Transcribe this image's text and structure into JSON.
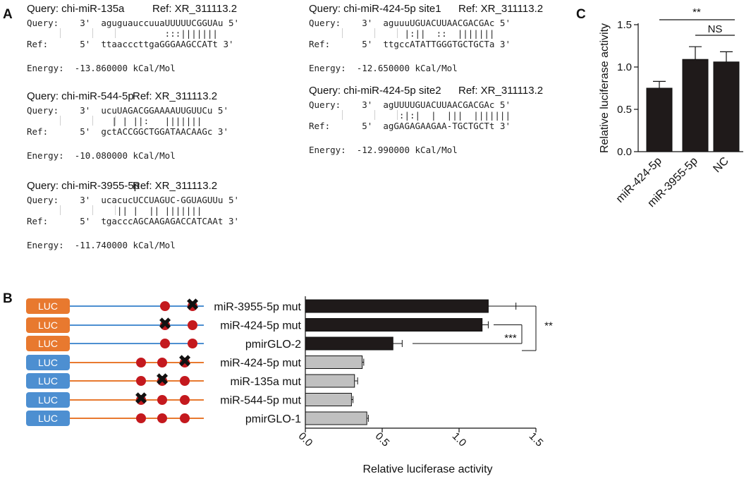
{
  "panels": {
    "a": "A",
    "b": "B",
    "c": "C"
  },
  "alignments": [
    {
      "query_title": "Query: chi-miR-135a",
      "ref_title": "Ref: XR_311113.2",
      "query_row": "Query:    3'  aguguauccuuaUUUUUCGGUAu 5'",
      "bars_row": "                          :::|||||||",
      "ref_row": "Ref:      5'  ttaacccttgaGGGAAGCCATt 3'",
      "energy_row": "Energy:  -13.860000 kCal/Mol"
    },
    {
      "query_title": "Query: chi-miR-544-5p",
      "ref_title": "Ref: XR_311113.2",
      "query_row": "Query:    3'  ucuUAGACGGAAAAUUGUUCu 5'",
      "bars_row": "                | | ||:   |||||||",
      "ref_row": "Ref:      5'  gctACCGGCTGGATAACAAGc 3'",
      "energy_row": "Energy:  -10.080000 kCal/Mol"
    },
    {
      "query_title": "Query: chi-miR-3955-5p",
      "ref_title": "Ref: XR_311113.2",
      "query_row": "Query:    3'  ucacucUCCUAGUC-GGUAGUUu 5'",
      "bars_row": "                 || |  || |||||||",
      "ref_row": "Ref:      5'  tgacccAGCAAGAGACCATCAAt 3'",
      "energy_row": "Energy:  -11.740000 kCal/Mol"
    },
    {
      "query_title": "Query: chi-miR-424-5p site1",
      "ref_title": "Ref: XR_311113.2",
      "query_row": "Query:    3'  aguuuUGUACUUAACGACGAc 5'",
      "bars_row": "                  |:||  ::  |||||||",
      "ref_row": "Ref:      5'  ttgccATATTGGGTGCTGCTa 3'",
      "energy_row": "Energy:  -12.650000 kCal/Mol"
    },
    {
      "query_title": "Query: chi-miR-424-5p site2",
      "ref_title": "Ref: XR_311113.2",
      "query_row": "Query:    3'  agUUUUGUACUUAACGACGAc 5'",
      "bars_row": "                 :|:|  |  |||  |||||||",
      "ref_row": "Ref:      5'  agGAGAGAAGAA-TGCTGCTt 3'",
      "energy_row": "Energy:  -12.990000 kCal/Mol"
    }
  ],
  "constructs": {
    "box_label": "LUC",
    "colors": {
      "orange": "#e8792f",
      "blue": "#4d8fd1",
      "dot": "#c4191e"
    },
    "rows": [
      {
        "name": "miR-3955-5p mut",
        "group": "orange",
        "mutated_site": 3
      },
      {
        "name": "miR-424-5p mut",
        "group": "orange",
        "mutated_site": 2
      },
      {
        "name": "pmirGLO-2",
        "group": "orange",
        "mutated_site": 0
      },
      {
        "name": "miR-424-5p mut",
        "group": "blue",
        "mutated_site": 3
      },
      {
        "name": "miR-135a mut",
        "group": "blue",
        "mutated_site": 2
      },
      {
        "name": "miR-544-5p mut",
        "group": "blue",
        "mutated_site": 1
      },
      {
        "name": "pmirGLO-1",
        "group": "blue",
        "mutated_site": 0
      }
    ]
  },
  "chart_data": [
    {
      "type": "bar",
      "orientation": "horizontal",
      "categories": [
        "miR-3955-5p mut",
        "miR-424-5p mut",
        "pmirGLO-2",
        "miR-424-5p mut",
        "miR-135a mut",
        "miR-544-5p mut",
        "pmirGLO-1"
      ],
      "values": [
        1.19,
        1.15,
        0.57,
        0.37,
        0.32,
        0.3,
        0.4
      ],
      "errors": [
        0.18,
        0.04,
        0.06,
        0.01,
        0.02,
        0.01,
        0.01
      ],
      "bar_colors": [
        "#1f1a1a",
        "#1f1a1a",
        "#1f1a1a",
        "#c0c0c0",
        "#c0c0c0",
        "#c0c0c0",
        "#c0c0c0"
      ],
      "xlabel": "Relative luciferase activity",
      "xlim": [
        0,
        1.5
      ],
      "xticks": [
        "0.0",
        "0.5",
        "1.0",
        "1.5"
      ],
      "significance": [
        "***",
        "**"
      ]
    },
    {
      "type": "bar",
      "categories": [
        "miR-424-5p",
        "miR-3955-5p",
        "NC"
      ],
      "values": [
        0.75,
        1.09,
        1.06
      ],
      "errors": [
        0.08,
        0.15,
        0.12
      ],
      "bar_color": "#1f1a1a",
      "ylabel": "Relative luciferase activity",
      "ylim": [
        0,
        1.5
      ],
      "yticks": [
        "0.0",
        "0.5",
        "1.0",
        "1.5"
      ],
      "significance": [
        "**",
        "NS"
      ]
    }
  ]
}
